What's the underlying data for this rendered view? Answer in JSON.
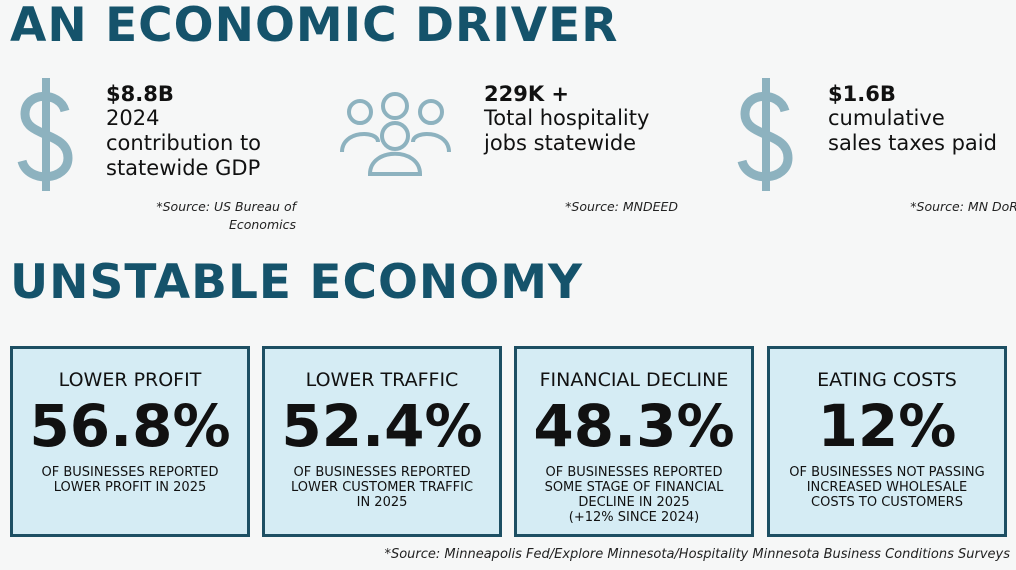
{
  "header": {
    "title": "AN ECONOMIC DRIVER"
  },
  "stats": [
    {
      "value": "$8.8B",
      "lines": [
        "2024",
        "contribution to",
        "statewide GDP"
      ],
      "source": "*Source: US Bureau of Economics"
    },
    {
      "value": "229K +",
      "lines": [
        "Total hospitality",
        "jobs statewide"
      ],
      "source": "*Source: MNDEED"
    },
    {
      "value": "$1.6B",
      "lines": [
        "cumulative",
        "sales taxes paid"
      ],
      "source": "*Source: MN DoR"
    }
  ],
  "section": {
    "title": "UNSTABLE ECONOMY"
  },
  "cards": [
    {
      "heading": "LOWER PROFIT",
      "value": "56.8%",
      "lines": [
        "OF BUSINESSES REPORTED",
        "LOWER PROFIT IN 2025"
      ]
    },
    {
      "heading": "LOWER TRAFFIC",
      "value": "52.4%",
      "lines": [
        "OF BUSINESSES REPORTED",
        "LOWER CUSTOMER TRAFFIC",
        "IN 2025"
      ]
    },
    {
      "heading": "FINANCIAL DECLINE",
      "value": "48.3%",
      "lines": [
        "OF BUSINESSES REPORTED",
        "SOME STAGE OF FINANCIAL",
        "DECLINE IN 2025",
        "(+12% SINCE 2024)"
      ]
    },
    {
      "heading": "EATING COSTS",
      "value": "12%",
      "lines": [
        "OF BUSINESSES NOT PASSING",
        "INCREASED WHOLESALE",
        "COSTS TO CUSTOMERS"
      ]
    }
  ],
  "footer": {
    "source": "*Source: Minneapolis Fed/Explore Minnesota/Hospitality Minnesota Business Conditions Surveys"
  }
}
